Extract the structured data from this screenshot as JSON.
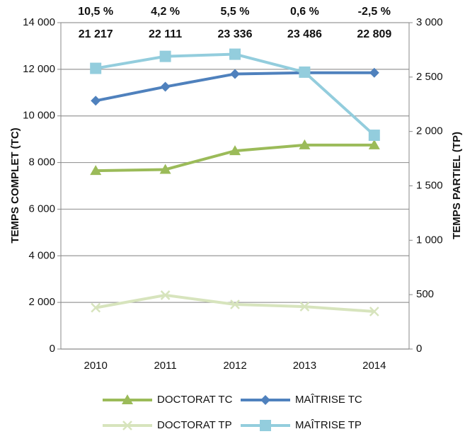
{
  "chart_data": {
    "type": "line",
    "categories": [
      "2010",
      "2011",
      "2012",
      "2013",
      "2014"
    ],
    "series": [
      {
        "name": "DOCTORAT TC",
        "color": "#9bbb59",
        "marker": "triangle",
        "axis": "y",
        "values": [
          7650,
          7700,
          8500,
          8750,
          8750
        ]
      },
      {
        "name": "MAÎTRISE TC",
        "color": "#4f81bd",
        "marker": "diamond",
        "axis": "y",
        "values": [
          10650,
          11250,
          11800,
          11850,
          11850
        ]
      },
      {
        "name": "DOCTORAT TP",
        "color": "#d7e4bd",
        "marker": "x",
        "axis": "y2",
        "values": [
          380,
          495,
          410,
          390,
          345
        ]
      },
      {
        "name": "MAÎTRISE TP",
        "color": "#93cddd",
        "marker": "square",
        "axis": "y2",
        "values": [
          2580,
          2690,
          2710,
          2545,
          1965
        ]
      }
    ],
    "growth_labels": [
      "10,5 %",
      "4,2 %",
      "5,5 %",
      "0,6 %",
      "-2,5 %"
    ],
    "total_labels": [
      "21 217",
      "22 111",
      "23 336",
      "23 486",
      "22 809"
    ],
    "ylabel": "TEMPS COMPLET (TC)",
    "y2label": "TEMPS PARTIEL (TP)",
    "ylim": [
      0,
      14000
    ],
    "yticks": [
      0,
      {
        "value": 2000,
        "label": "2 000"
      },
      {
        "value": 4000,
        "label": "4 000"
      },
      {
        "value": 6000,
        "label": "6 000"
      },
      {
        "value": 8000,
        "label": "8 000"
      },
      {
        "value": 10000,
        "label": "10 000"
      },
      {
        "value": 12000,
        "label": "12 000"
      },
      {
        "value": 14000,
        "label": "14 000"
      }
    ],
    "y2lim": [
      0,
      3000
    ],
    "y2ticks": [
      0,
      500,
      {
        "value": 1000,
        "label": "1 000"
      },
      {
        "value": 1500,
        "label": "1 500"
      },
      {
        "value": 2000,
        "label": "2 000"
      },
      {
        "value": 2500,
        "label": "2 500"
      },
      {
        "value": 3000,
        "label": "3 000"
      }
    ],
    "grid": true
  }
}
